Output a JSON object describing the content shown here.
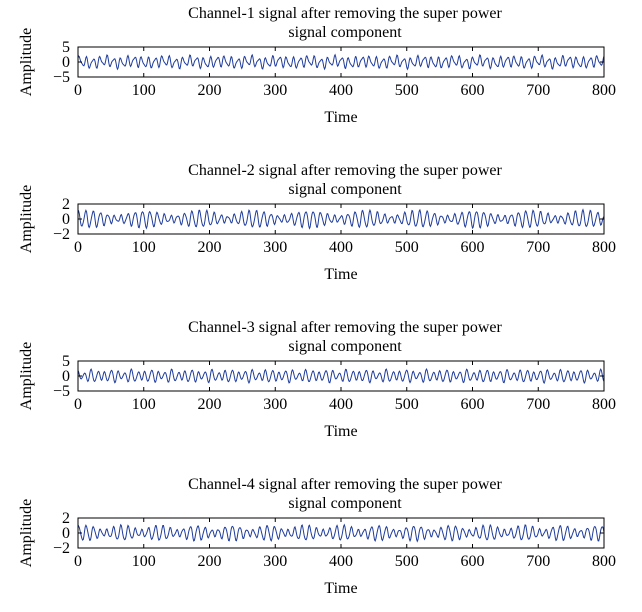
{
  "figure": {
    "accent_color": "#1f3c9b",
    "axis_color": "#000000",
    "background": "#ffffff"
  },
  "chart_data": [
    {
      "type": "line",
      "title_line1": "Channel-1 signal after removing the super power",
      "title_line2": "signal component",
      "xlabel": "Time",
      "ylabel": "Amplitude",
      "xlim": [
        0,
        800
      ],
      "ylim": [
        -5,
        5
      ],
      "xticks": [
        0,
        100,
        200,
        300,
        400,
        500,
        600,
        700,
        800
      ],
      "yticks": [
        -5,
        0,
        5
      ],
      "grid": false,
      "series": [
        {
          "samples": 800,
          "components": [
            {
              "amplitude": 1.5,
              "period": 10.5,
              "phase": 0.3
            },
            {
              "amplitude": 0.6,
              "period": 6.3,
              "phase": 1.1
            },
            {
              "amplitude": 0.35,
              "period": 44,
              "phase": 2.0
            }
          ]
        }
      ]
    },
    {
      "type": "line",
      "title_line1": "Channel-2 signal after removing the super power",
      "title_line2": "signal component",
      "xlabel": "Time",
      "ylabel": "Amplitude",
      "xlim": [
        0,
        800
      ],
      "ylim": [
        -2,
        2
      ],
      "xticks": [
        0,
        100,
        200,
        300,
        400,
        500,
        600,
        700,
        800
      ],
      "yticks": [
        -2,
        0,
        2
      ],
      "grid": false,
      "series": [
        {
          "samples": 800,
          "components": [
            {
              "amplitude": 0.75,
              "period": 10.8,
              "phase": 0.9
            },
            {
              "amplitude": 0.35,
              "period": 12.4,
              "phase": 2.2
            },
            {
              "amplitude": 0.15,
              "period": 5.9,
              "phase": 0.4
            }
          ]
        }
      ]
    },
    {
      "type": "line",
      "title_line1": "Channel-3 signal after removing the super power",
      "title_line2": "signal component",
      "xlabel": "Time",
      "ylabel": "Amplitude",
      "xlim": [
        0,
        800
      ],
      "ylim": [
        -5,
        5
      ],
      "xticks": [
        0,
        100,
        200,
        300,
        400,
        500,
        600,
        700,
        800
      ],
      "yticks": [
        -5,
        0,
        5
      ],
      "grid": false,
      "series": [
        {
          "samples": 800,
          "components": [
            {
              "amplitude": 1.6,
              "period": 10.2,
              "phase": 1.7
            },
            {
              "amplitude": 0.5,
              "period": 15.5,
              "phase": 0.2
            },
            {
              "amplitude": 0.3,
              "period": 6.8,
              "phase": 2.6
            }
          ]
        }
      ]
    },
    {
      "type": "line",
      "title_line1": "Channel-4 signal after removing the super power",
      "title_line2": "signal component",
      "xlabel": "Time",
      "ylabel": "Amplitude",
      "xlim": [
        0,
        800
      ],
      "ylim": [
        -2,
        2
      ],
      "xticks": [
        0,
        100,
        200,
        300,
        400,
        500,
        600,
        700,
        800
      ],
      "yticks": [
        -2,
        0,
        2
      ],
      "grid": false,
      "series": [
        {
          "samples": 800,
          "components": [
            {
              "amplitude": 0.7,
              "period": 10.6,
              "phase": 0.5
            },
            {
              "amplitude": 0.3,
              "period": 13.1,
              "phase": 1.9
            },
            {
              "amplitude": 0.12,
              "period": 5.4,
              "phase": 1.2
            }
          ]
        }
      ]
    }
  ]
}
